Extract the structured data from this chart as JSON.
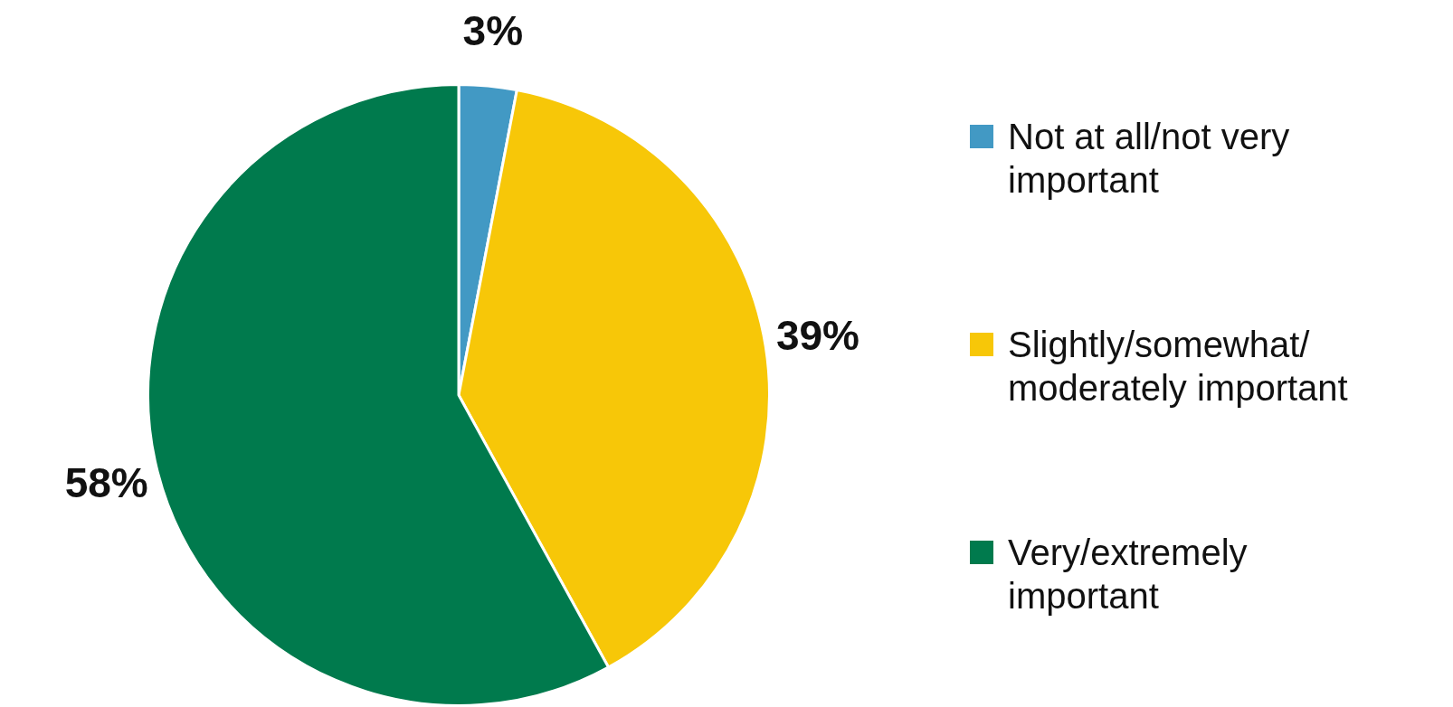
{
  "chart_data": {
    "type": "pie",
    "categories": [
      "Not at all/not very important",
      "Slightly/somewhat/ moderately important",
      "Very/extremely important"
    ],
    "values": [
      3,
      39,
      58
    ],
    "colors": [
      "#4299c4",
      "#f7c708",
      "#007a4d"
    ],
    "value_labels": [
      "3%",
      "39%",
      "58%"
    ],
    "legend": "right"
  }
}
